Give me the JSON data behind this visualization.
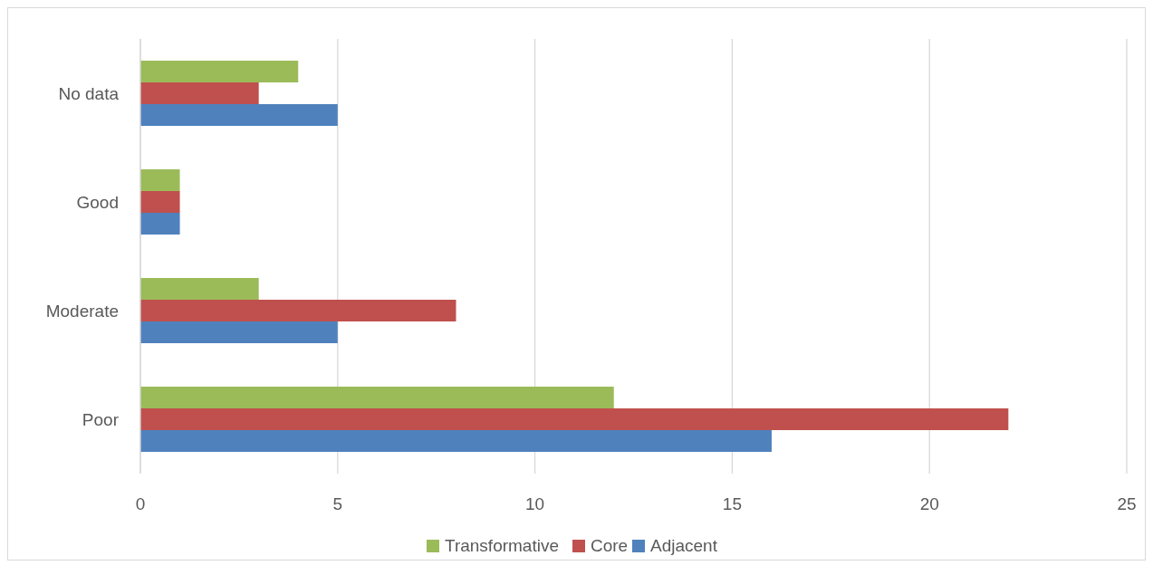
{
  "chart_data": {
    "type": "bar",
    "orientation": "horizontal",
    "categories": [
      "No data",
      "Good",
      "Moderate",
      "Poor"
    ],
    "series": [
      {
        "name": "Transformative",
        "color": "#9bbb59",
        "values": [
          4,
          1,
          3,
          12
        ]
      },
      {
        "name": "Core",
        "color": "#c0504d",
        "values": [
          3,
          1,
          8,
          22
        ]
      },
      {
        "name": "Adjacent",
        "color": "#4f81bd",
        "values": [
          5,
          1,
          5,
          16
        ]
      }
    ],
    "xlim": [
      0,
      25
    ],
    "xticks": [
      0,
      5,
      10,
      15,
      20,
      25
    ],
    "grid": "x",
    "legend": "bottom"
  }
}
